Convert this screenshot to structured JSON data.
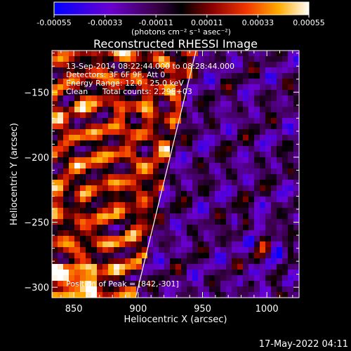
{
  "chart_data": {
    "type": "heatmap",
    "title": "Reconstructed RHESSI Image",
    "xlabel": "Heliocentric X (arcsec)",
    "ylabel": "Heliocentric Y (arcsec)",
    "xlim": [
      833,
      1025
    ],
    "ylim": [
      -308,
      -118
    ],
    "xticks": [
      850,
      900,
      950,
      1000
    ],
    "yticks": [
      -150,
      -200,
      -250,
      -300
    ],
    "colorbar": {
      "label": "(photons cm⁻² s⁻¹ asec⁻²)",
      "range": [
        -0.00055,
        0.00055
      ],
      "ticks": [
        "-0.00055",
        "-0.00033",
        "-0.00011",
        "0.00011",
        "0.00033",
        "0.00055"
      ]
    },
    "annotations": {
      "time_range": "13-Sep-2014 08:22:44.000 to 08:28:44.000",
      "detectors": "Detectors: 3F 6F 9F, Att 0",
      "energy_range": "Energy Range: 12.0 - 25.0 keV",
      "clean": "Clean",
      "total_counts": "Total counts: 2.29E+03",
      "peak": "Position of Peak = [842,-301]"
    },
    "limb_line": [
      [
        898,
        -308
      ],
      [
        945,
        -118
      ]
    ],
    "peak_position": [
      842,
      -301
    ],
    "footer_date": "17-May-2022 04:11"
  },
  "colors": {
    "background": "#000000",
    "foreground": "#ffffff"
  }
}
